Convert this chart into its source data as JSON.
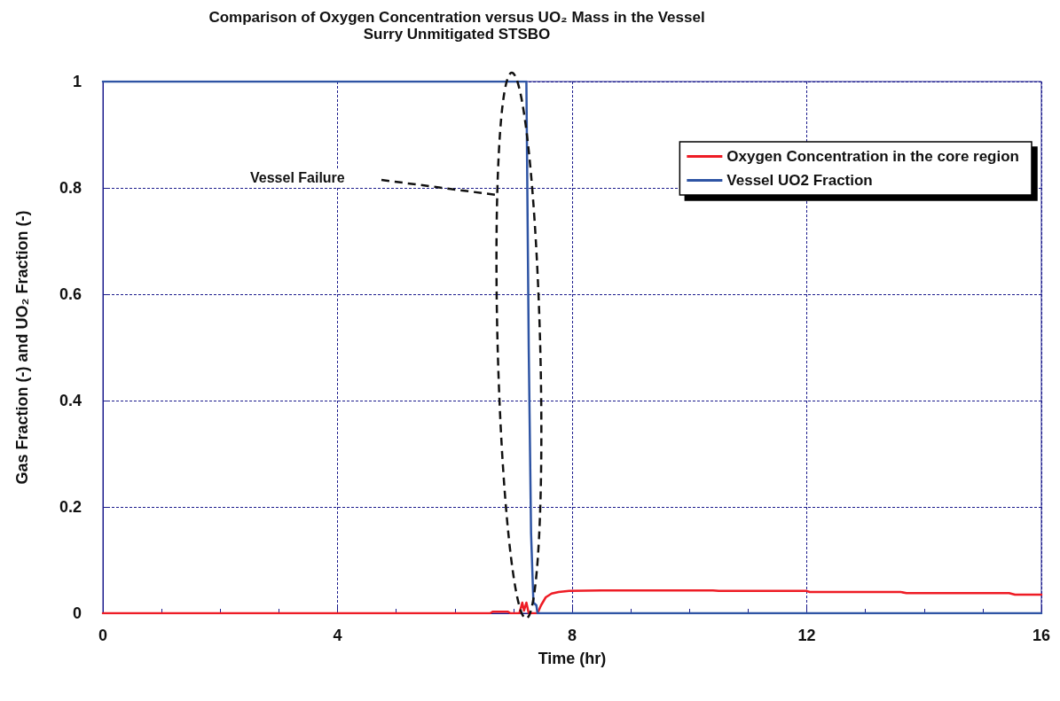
{
  "chart_data": {
    "type": "line",
    "title": "Comparison of Oxygen Concentration versus UO₂ Mass in the Vessel",
    "subtitle": "Surry Unmitigated STSBO",
    "xlabel": "Time (hr)",
    "ylabel": "Gas Fraction (-) and UO₂ Fraction (-)",
    "xlim": [
      0,
      16
    ],
    "xticks": [
      0,
      4,
      8,
      12,
      16
    ],
    "ylim": [
      0,
      1
    ],
    "yticks": [
      0,
      0.2,
      0.4,
      0.6,
      0.8,
      1
    ],
    "grid": true,
    "legend": "top right",
    "marker": "none",
    "line_style": "solid",
    "annotations": [
      "Vessel Failure"
    ],
    "series": [
      {
        "name": "Oxygen Concentration in the core region",
        "color": "#ee1c25",
        "x": [
          0,
          6.6,
          6.65,
          6.9,
          6.95,
          7.1,
          7.15,
          7.18,
          7.22,
          7.26,
          7.3,
          7.35,
          7.41,
          7.47,
          7.55,
          7.65,
          7.77,
          7.95,
          8.5,
          10.4,
          10.5,
          12,
          12.05,
          13.6,
          13.7,
          15.45,
          15.55,
          16
        ],
        "values": [
          0,
          0,
          0.003,
          0.003,
          0,
          0,
          0.02,
          0.005,
          0.02,
          0,
          0,
          0,
          0,
          0.015,
          0.03,
          0.037,
          0.04,
          0.042,
          0.043,
          0.043,
          0.042,
          0.042,
          0.04,
          0.04,
          0.038,
          0.038,
          0.035,
          0.035
        ]
      },
      {
        "name": "Vessel UO2 Fraction",
        "color": "#2e54a4",
        "x": [
          0,
          7.22,
          7.26,
          7.3,
          7.34,
          7.39,
          7.41,
          16
        ],
        "values": [
          1,
          1,
          0.5,
          0.15,
          0.02,
          0.015,
          0,
          0
        ]
      }
    ]
  }
}
